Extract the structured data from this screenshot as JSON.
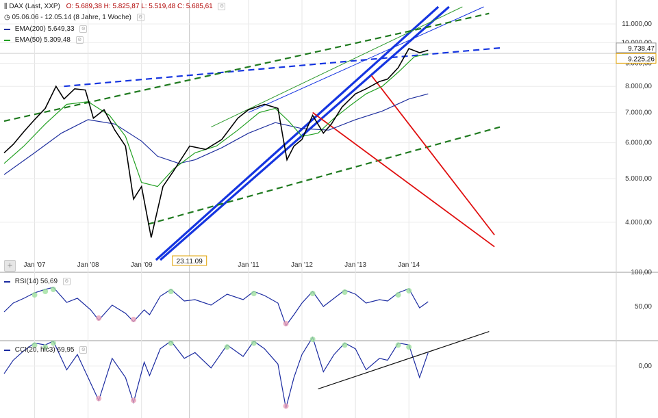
{
  "legend": {
    "title": "DAX (Last, XXP)",
    "ohlc": "O: 5.689,38  H: 5.825,87  L: 5.519,48  C: 5.685,61",
    "period": "05.06.06 - 12.05.14 (8 Jahre, 1 Woche)",
    "ema200": "EMA(200)  5.649,33",
    "ema50": "EMA(50)  5.309,48",
    "rsi": "RSI(14)  56,69",
    "cci": "CCI(20, hlc3)  69,95"
  },
  "colors": {
    "price": "#000000",
    "ema200": "#1f2f9e",
    "ema50": "#23a023",
    "trend_blue": "#1535e0",
    "trend_green": "#1f7a1f",
    "trend_red": "#e01010",
    "oscillator": "#1a2aa0",
    "overbought_fill": "#9fe09f",
    "oversold_fill": "#e8a0b8"
  },
  "chart_data": [
    {
      "type": "line",
      "title": "DAX (Last, XXP)",
      "y_scale": "log",
      "ylim": [
        3300,
        12000
      ],
      "y_ticks": [
        "11.000,00",
        "10.000,00",
        "9.000,00",
        "8.000,00",
        "7.000,00",
        "6.000,00",
        "5.000,00",
        "4.000,00"
      ],
      "x_ticks": [
        "Jan '07",
        "Jan '08",
        "Jan '09",
        "23.11.09",
        "Jan '11",
        "Jan '12",
        "Jan '13",
        "Jan '14"
      ],
      "price_flags": [
        "9.738,47",
        "9.225,26"
      ],
      "series": [
        {
          "name": "DAX",
          "x": [
            2006.43,
            2006.6,
            2006.8,
            2007.0,
            2007.2,
            2007.4,
            2007.55,
            2007.75,
            2007.95,
            2008.1,
            2008.3,
            2008.5,
            2008.7,
            2008.85,
            2009.0,
            2009.18,
            2009.4,
            2009.6,
            2009.9,
            2010.2,
            2010.5,
            2010.8,
            2011.0,
            2011.3,
            2011.55,
            2011.72,
            2011.85,
            2012.0,
            2012.2,
            2012.4,
            2012.55,
            2012.75,
            2013.0,
            2013.2,
            2013.45,
            2013.6,
            2013.8,
            2014.0,
            2014.2,
            2014.36
          ],
          "values": [
            5700,
            5950,
            6350,
            6750,
            7150,
            8000,
            7500,
            7900,
            7850,
            6800,
            7100,
            6400,
            5900,
            4500,
            4800,
            3700,
            4800,
            5200,
            5900,
            5800,
            6100,
            6800,
            7100,
            7300,
            7150,
            5500,
            5900,
            6100,
            6900,
            6300,
            6600,
            7200,
            7700,
            7900,
            8200,
            8300,
            8800,
            9700,
            9500,
            9620
          ]
        },
        {
          "name": "EMA(200)",
          "x": [
            2006.43,
            2007.0,
            2007.5,
            2008.0,
            2008.5,
            2009.0,
            2009.3,
            2009.7,
            2010.0,
            2010.5,
            2011.0,
            2011.5,
            2012.0,
            2012.5,
            2013.0,
            2013.5,
            2014.0,
            2014.36
          ],
          "values": [
            5100,
            5700,
            6300,
            6750,
            6600,
            6050,
            5600,
            5400,
            5500,
            5850,
            6300,
            6650,
            6450,
            6400,
            6750,
            7050,
            7500,
            7700
          ]
        },
        {
          "name": "EMA(50)",
          "x": [
            2006.43,
            2006.8,
            2007.2,
            2007.6,
            2008.0,
            2008.4,
            2008.7,
            2009.0,
            2009.3,
            2009.6,
            2010.0,
            2010.4,
            2010.8,
            2011.2,
            2011.5,
            2011.75,
            2012.0,
            2012.3,
            2012.6,
            2012.9,
            2013.2,
            2013.5,
            2013.8,
            2014.1,
            2014.36
          ],
          "values": [
            5400,
            5900,
            6600,
            7300,
            7400,
            6900,
            6200,
            4900,
            4800,
            5250,
            5700,
            5900,
            6400,
            7000,
            7150,
            6700,
            6200,
            6300,
            6800,
            7250,
            7700,
            8000,
            8600,
            9300,
            9450
          ]
        }
      ],
      "trendlines": [
        {
          "color": "blue-solid",
          "from": [
            2009.27,
            3300
          ],
          "to": [
            2014.55,
            12000
          ]
        },
        {
          "color": "blue-solid",
          "from": [
            2009.35,
            3300
          ],
          "to": [
            2014.75,
            12000
          ]
        },
        {
          "color": "blue-thin",
          "from": [
            2011.0,
            7000
          ],
          "to": [
            2015.4,
            12000
          ]
        },
        {
          "color": "green-thin",
          "from": [
            2010.3,
            6500
          ],
          "to": [
            2015.0,
            12000
          ]
        },
        {
          "color": "blue-dashed",
          "from": [
            2007.55,
            8000
          ],
          "to": [
            2015.7,
            9730
          ]
        },
        {
          "color": "green-dashed",
          "from": [
            2006.43,
            6700
          ],
          "to": [
            2015.5,
            11600
          ]
        },
        {
          "color": "green-dashed",
          "from": [
            2009.12,
            3960
          ],
          "to": [
            2015.7,
            6500
          ]
        },
        {
          "color": "red",
          "from": [
            2012.2,
            7000
          ],
          "to": [
            2015.6,
            3530
          ]
        },
        {
          "color": "red",
          "from": [
            2013.3,
            8450
          ],
          "to": [
            2015.6,
            3750
          ]
        }
      ]
    },
    {
      "type": "line",
      "title": "RSI(14)",
      "ylim": [
        0,
        100
      ],
      "y_ticks": [
        "100,00",
        "50,00"
      ],
      "series": [
        {
          "name": "RSI(14)",
          "x": [
            2006.43,
            2006.6,
            2006.8,
            2007.0,
            2007.2,
            2007.35,
            2007.6,
            2007.8,
            2008.05,
            2008.2,
            2008.45,
            2008.7,
            2008.85,
            2009.05,
            2009.15,
            2009.35,
            2009.55,
            2009.8,
            2010.0,
            2010.3,
            2010.6,
            2010.9,
            2011.1,
            2011.3,
            2011.55,
            2011.7,
            2011.85,
            2012.0,
            2012.2,
            2012.4,
            2012.6,
            2012.8,
            2013.0,
            2013.2,
            2013.45,
            2013.6,
            2013.8,
            2014.0,
            2014.2,
            2014.36
          ],
          "values": [
            42,
            55,
            62,
            70,
            75,
            78,
            56,
            62,
            45,
            30,
            52,
            40,
            28,
            45,
            38,
            65,
            75,
            58,
            60,
            52,
            68,
            60,
            72,
            66,
            55,
            22,
            38,
            55,
            72,
            50,
            62,
            74,
            68,
            55,
            60,
            58,
            70,
            76,
            48,
            57
          ]
        }
      ]
    },
    {
      "type": "line",
      "title": "CCI(20, hlc3)",
      "y_ticks": [
        "0,00"
      ],
      "series": [
        {
          "name": "CCI(20, hlc3)",
          "x": [
            2006.43,
            2006.6,
            2006.8,
            2007.0,
            2007.2,
            2007.35,
            2007.6,
            2007.8,
            2008.05,
            2008.2,
            2008.45,
            2008.7,
            2008.85,
            2009.05,
            2009.15,
            2009.35,
            2009.55,
            2009.8,
            2010.0,
            2010.3,
            2010.6,
            2010.9,
            2011.1,
            2011.3,
            2011.55,
            2011.7,
            2011.85,
            2012.0,
            2012.2,
            2012.4,
            2012.6,
            2012.8,
            2013.0,
            2013.2,
            2013.45,
            2013.6,
            2013.8,
            2014.0,
            2014.2,
            2014.36
          ],
          "values": [
            -40,
            30,
            80,
            120,
            110,
            130,
            -20,
            60,
            -90,
            -180,
            40,
            -60,
            -190,
            20,
            -50,
            90,
            130,
            40,
            70,
            -10,
            110,
            50,
            130,
            90,
            10,
            -220,
            -60,
            60,
            150,
            -30,
            60,
            120,
            90,
            -20,
            40,
            30,
            120,
            110,
            -60,
            70
          ]
        }
      ],
      "trendlines": [
        {
          "color": "black",
          "from": [
            2012.3,
            -120
          ],
          "to": [
            2015.5,
            180
          ]
        }
      ]
    }
  ]
}
